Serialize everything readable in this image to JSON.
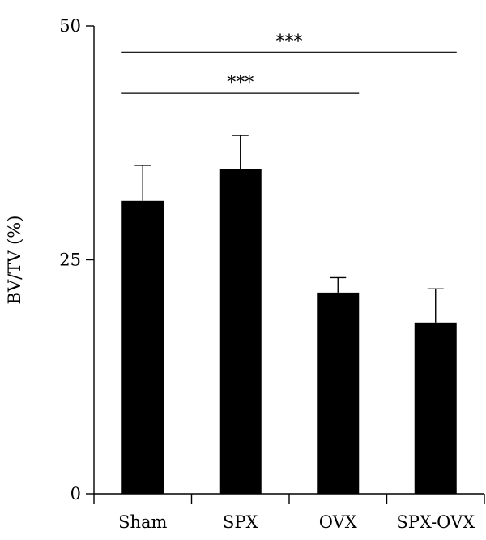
{
  "chart_data": {
    "type": "bar",
    "categories": [
      "Sham",
      "SPX",
      "OVX",
      "SPX-OVX"
    ],
    "values": [
      31.3,
      34.7,
      21.5,
      18.3
    ],
    "errors": [
      3.8,
      3.6,
      1.6,
      3.6
    ],
    "xlabel": "",
    "ylabel": "BV/TV (%)",
    "ylim": [
      0,
      50
    ],
    "yticks": [
      0,
      25,
      50
    ],
    "grid": false,
    "bar_color": "#000000",
    "significance": [
      {
        "from": "Sham",
        "to": "OVX",
        "label": "***",
        "y": 42.8
      },
      {
        "from": "Sham",
        "to": "SPX-OVX",
        "label": "***",
        "y": 47.2
      }
    ]
  }
}
